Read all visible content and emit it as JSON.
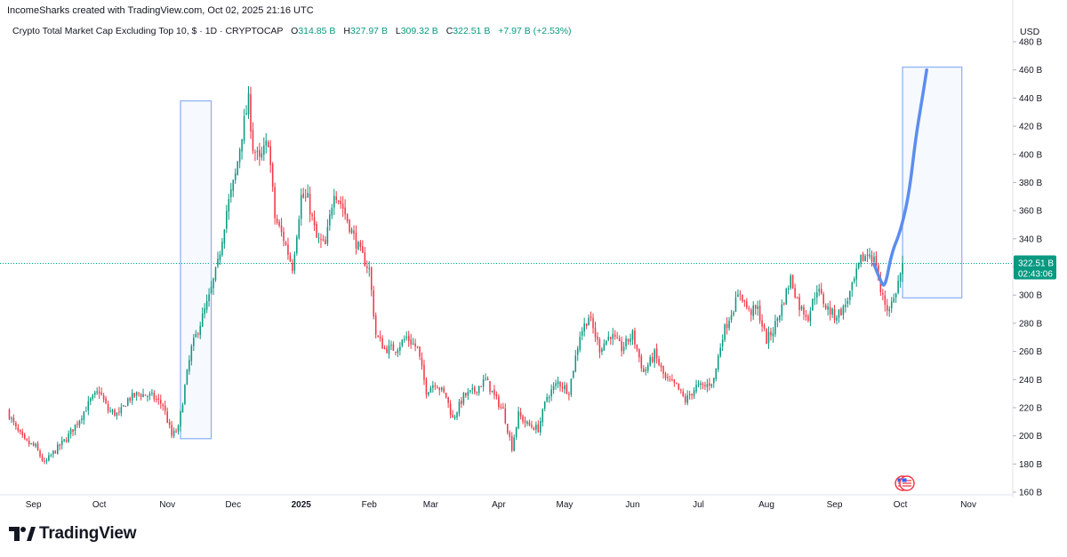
{
  "header": {
    "credit": "IncomeSharks created with TradingView.com, Oct 02, 2025 21:16 UTC"
  },
  "legend": {
    "symbol": "Crypto Total Market Cap Excluding Top 10, $ · 1D · CRYPTOCAP",
    "open_label": "O",
    "open": "314.85 B",
    "high_label": "H",
    "high": "327.97 B",
    "low_label": "L",
    "low": "309.32 B",
    "close_label": "C",
    "close": "322.51 B",
    "change": "+7.97 B (+2.53%)"
  },
  "price_axis": {
    "currency": "USD",
    "current_price": "322.51 B",
    "countdown": "02:43:06"
  },
  "brand": {
    "name": "TradingView"
  },
  "colors": {
    "up": "#089981",
    "down": "#f23645",
    "projection": "#5b8def",
    "box": "#90b4f5",
    "price_line": "#089981"
  },
  "icons": [
    "tradingview-logo-icon",
    "us-flag-event-icon"
  ],
  "chart_data": {
    "type": "candlestick",
    "title": "Crypto Total Market Cap Excluding Top 10, $ · 1D · CRYPTOCAP",
    "ylim": [
      160,
      480
    ],
    "y_unit": "B",
    "y_ticks": [
      160,
      180,
      200,
      220,
      240,
      260,
      280,
      300,
      320,
      340,
      360,
      380,
      400,
      420,
      440,
      460,
      480
    ],
    "x_ticks": [
      {
        "label": "Sep",
        "date": "2024-09-01"
      },
      {
        "label": "Oct",
        "date": "2024-10-01"
      },
      {
        "label": "Nov",
        "date": "2024-11-01"
      },
      {
        "label": "Dec",
        "date": "2024-12-01"
      },
      {
        "label": "2025",
        "date": "2025-01-01",
        "bold": true
      },
      {
        "label": "Feb",
        "date": "2025-02-01"
      },
      {
        "label": "Mar",
        "date": "2025-03-01"
      },
      {
        "label": "Apr",
        "date": "2025-04-01"
      },
      {
        "label": "May",
        "date": "2025-05-01"
      },
      {
        "label": "Jun",
        "date": "2025-06-01"
      },
      {
        "label": "Jul",
        "date": "2025-07-01"
      },
      {
        "label": "Aug",
        "date": "2025-08-01"
      },
      {
        "label": "Sep",
        "date": "2025-09-01"
      },
      {
        "label": "Oct",
        "date": "2025-10-01"
      },
      {
        "label": "Nov",
        "date": "2025-11-01"
      }
    ],
    "x_range": [
      "2024-08-20",
      "2025-11-20"
    ],
    "anchors": [
      [
        "2024-08-20",
        218
      ],
      [
        "2024-08-24",
        205
      ],
      [
        "2024-08-28",
        196
      ],
      [
        "2024-09-02",
        192
      ],
      [
        "2024-09-06",
        180
      ],
      [
        "2024-09-10",
        188
      ],
      [
        "2024-09-16",
        198
      ],
      [
        "2024-09-22",
        212
      ],
      [
        "2024-09-27",
        225
      ],
      [
        "2024-10-01",
        232
      ],
      [
        "2024-10-05",
        218
      ],
      [
        "2024-10-10",
        215
      ],
      [
        "2024-10-14",
        226
      ],
      [
        "2024-10-19",
        230
      ],
      [
        "2024-10-25",
        228
      ],
      [
        "2024-10-30",
        222
      ],
      [
        "2024-11-03",
        200
      ],
      [
        "2024-11-06",
        205
      ],
      [
        "2024-11-09",
        235
      ],
      [
        "2024-11-12",
        262
      ],
      [
        "2024-11-16",
        280
      ],
      [
        "2024-11-20",
        298
      ],
      [
        "2024-11-24",
        322
      ],
      [
        "2024-11-28",
        360
      ],
      [
        "2024-12-02",
        385
      ],
      [
        "2024-12-05",
        415
      ],
      [
        "2024-12-08",
        438
      ],
      [
        "2024-12-10",
        405
      ],
      [
        "2024-12-13",
        395
      ],
      [
        "2024-12-17",
        410
      ],
      [
        "2024-12-20",
        355
      ],
      [
        "2024-12-24",
        340
      ],
      [
        "2024-12-28",
        320
      ],
      [
        "2025-01-01",
        370
      ],
      [
        "2025-01-04",
        368
      ],
      [
        "2025-01-08",
        340
      ],
      [
        "2025-01-12",
        335
      ],
      [
        "2025-01-16",
        375
      ],
      [
        "2025-01-20",
        362
      ],
      [
        "2025-01-24",
        345
      ],
      [
        "2025-01-28",
        330
      ],
      [
        "2025-02-01",
        318
      ],
      [
        "2025-02-04",
        272
      ],
      [
        "2025-02-08",
        262
      ],
      [
        "2025-02-13",
        262
      ],
      [
        "2025-02-18",
        270
      ],
      [
        "2025-02-23",
        262
      ],
      [
        "2025-02-27",
        232
      ],
      [
        "2025-03-03",
        238
      ],
      [
        "2025-03-08",
        228
      ],
      [
        "2025-03-11",
        212
      ],
      [
        "2025-03-16",
        228
      ],
      [
        "2025-03-21",
        232
      ],
      [
        "2025-03-26",
        240
      ],
      [
        "2025-03-30",
        228
      ],
      [
        "2025-04-03",
        218
      ],
      [
        "2025-04-07",
        192
      ],
      [
        "2025-04-10",
        215
      ],
      [
        "2025-04-14",
        208
      ],
      [
        "2025-04-19",
        205
      ],
      [
        "2025-04-23",
        228
      ],
      [
        "2025-04-28",
        238
      ],
      [
        "2025-05-03",
        232
      ],
      [
        "2025-05-08",
        272
      ],
      [
        "2025-05-12",
        285
      ],
      [
        "2025-05-17",
        262
      ],
      [
        "2025-05-22",
        272
      ],
      [
        "2025-05-27",
        262
      ],
      [
        "2025-06-01",
        272
      ],
      [
        "2025-06-06",
        245
      ],
      [
        "2025-06-11",
        258
      ],
      [
        "2025-06-16",
        240
      ],
      [
        "2025-06-21",
        235
      ],
      [
        "2025-06-25",
        225
      ],
      [
        "2025-06-30",
        235
      ],
      [
        "2025-07-04",
        235
      ],
      [
        "2025-07-08",
        240
      ],
      [
        "2025-07-12",
        272
      ],
      [
        "2025-07-16",
        288
      ],
      [
        "2025-07-20",
        302
      ],
      [
        "2025-07-24",
        288
      ],
      [
        "2025-07-28",
        290
      ],
      [
        "2025-08-01",
        268
      ],
      [
        "2025-08-04",
        275
      ],
      [
        "2025-08-08",
        292
      ],
      [
        "2025-08-12",
        312
      ],
      [
        "2025-08-16",
        292
      ],
      [
        "2025-08-20",
        285
      ],
      [
        "2025-08-24",
        305
      ],
      [
        "2025-08-28",
        292
      ],
      [
        "2025-09-01",
        285
      ],
      [
        "2025-09-05",
        290
      ],
      [
        "2025-09-09",
        305
      ],
      [
        "2025-09-13",
        325
      ],
      [
        "2025-09-17",
        330
      ],
      [
        "2025-09-20",
        322
      ],
      [
        "2025-09-22",
        302
      ],
      [
        "2025-09-25",
        290
      ],
      [
        "2025-09-28",
        297
      ],
      [
        "2025-10-01",
        315
      ],
      [
        "2025-10-02",
        322.51
      ]
    ],
    "last_candle": {
      "date": "2025-10-02",
      "open": 314.85,
      "high": 327.97,
      "low": 309.32,
      "close": 322.51
    },
    "annotations": {
      "box_1": {
        "x_start": "2024-11-07",
        "x_end": "2024-11-21",
        "y_low": 198,
        "y_high": 438
      },
      "box_2": {
        "x_start": "2025-10-02",
        "x_end": "2025-10-29",
        "y_low": 298,
        "y_high": 462
      },
      "projection_path": [
        [
          "2025-09-19",
          322
        ],
        [
          "2025-09-22",
          310
        ],
        [
          "2025-09-24",
          305
        ],
        [
          "2025-09-27",
          330
        ],
        [
          "2025-10-01",
          345
        ],
        [
          "2025-10-05",
          372
        ],
        [
          "2025-10-08",
          412
        ],
        [
          "2025-10-11",
          440
        ],
        [
          "2025-10-13",
          460
        ]
      ],
      "event_markers": [
        "2025-10-02",
        "2025-10-04"
      ]
    },
    "grid": false
  }
}
